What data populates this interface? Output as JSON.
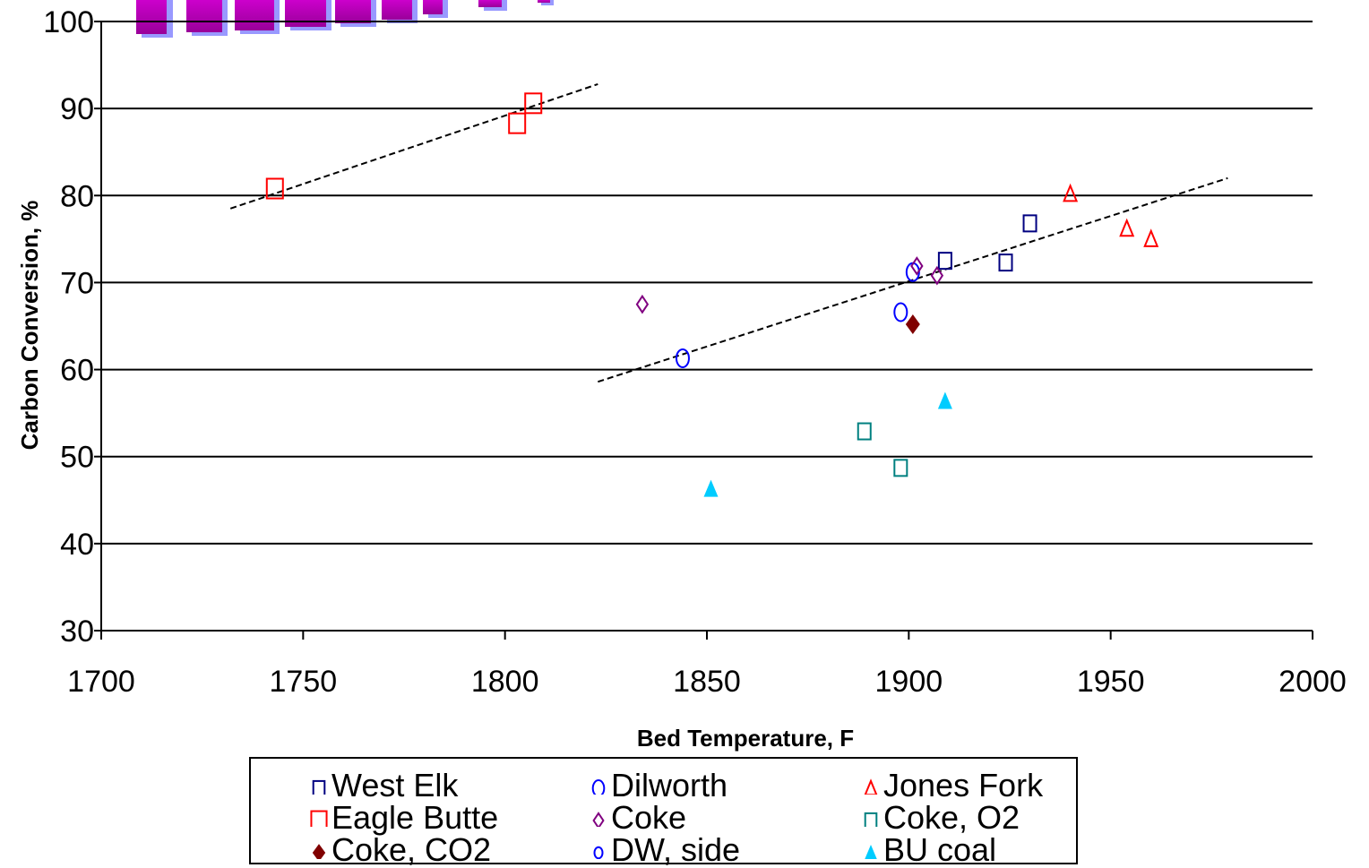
{
  "chart_data": {
    "type": "scatter",
    "title": "",
    "banner_text": "",
    "xlabel": "Bed Temperature, F",
    "ylabel": "Carbon Conversion, %",
    "xlim": [
      1700,
      2000
    ],
    "ylim": [
      30,
      100
    ],
    "xticks": [
      1700,
      1750,
      1800,
      1850,
      1900,
      1950,
      2000
    ],
    "yticks": [
      30,
      40,
      50,
      60,
      70,
      80,
      90,
      100
    ],
    "grid": "horizontal",
    "legend_position": "bottom",
    "series": [
      {
        "name": "West Elk",
        "marker": "square-open",
        "color": "#000080",
        "points": [
          [
            1909,
            72.5
          ],
          [
            1924,
            72.3
          ],
          [
            1930,
            76.8
          ]
        ]
      },
      {
        "name": "Dilworth",
        "marker": "ellipse-open",
        "color": "#0000FF",
        "points": [
          [
            1844,
            61.3
          ],
          [
            1898,
            66.6
          ],
          [
            1901,
            71.2
          ]
        ]
      },
      {
        "name": "Jones Fork",
        "marker": "triangle-open",
        "color": "#FF0000",
        "points": [
          [
            1940,
            80.2
          ],
          [
            1954,
            76.2
          ],
          [
            1960,
            75.0
          ]
        ]
      },
      {
        "name": "Eagle Butte",
        "marker": "square-open-large",
        "color": "#FF0000",
        "points": [
          [
            1743,
            80.8
          ],
          [
            1803,
            88.3
          ],
          [
            1807,
            90.6
          ]
        ]
      },
      {
        "name": "Coke",
        "marker": "diamond-open",
        "color": "#800080",
        "points": [
          [
            1834,
            67.5
          ],
          [
            1902,
            71.9
          ],
          [
            1907,
            70.8
          ]
        ]
      },
      {
        "name": "Coke, O2",
        "marker": "square-open-tall",
        "color": "#008080",
        "points": [
          [
            1889,
            52.9
          ],
          [
            1898,
            48.7
          ]
        ]
      },
      {
        "name": "Coke, CO2",
        "marker": "diamond-filled",
        "color": "#800000",
        "points": [
          [
            1901,
            65.2
          ]
        ]
      },
      {
        "name": "DW, side",
        "marker": "circle-open",
        "color": "#0000FF",
        "points": []
      },
      {
        "name": "BU coal",
        "marker": "triangle-filled",
        "color": "#00CCFF",
        "points": [
          [
            1851,
            46.3
          ],
          [
            1909,
            56.4
          ]
        ]
      }
    ],
    "trendlines": [
      {
        "style": "dashed",
        "color": "#000000",
        "from": [
          1732,
          78.5
        ],
        "to": [
          1823,
          92.8
        ]
      },
      {
        "style": "dashed",
        "color": "#000000",
        "from": [
          1823,
          58.6
        ],
        "to": [
          1979,
          82.0
        ]
      }
    ]
  },
  "legend": {
    "items": [
      {
        "label": "West Elk",
        "marker": "square-open",
        "color": "#000080"
      },
      {
        "label": "Dilworth",
        "marker": "ellipse-open",
        "color": "#0000FF"
      },
      {
        "label": "Jones Fork",
        "marker": "triangle-open",
        "color": "#FF0000"
      },
      {
        "label": "Eagle Butte",
        "marker": "square-open-large",
        "color": "#FF0000"
      },
      {
        "label": "Coke",
        "marker": "diamond-open",
        "color": "#800080"
      },
      {
        "label": "Coke, O2",
        "marker": "square-open-tall",
        "color": "#008080"
      },
      {
        "label": "Coke, CO2",
        "marker": "diamond-filled",
        "color": "#800000"
      },
      {
        "label": "DW, side",
        "marker": "circle-open",
        "color": "#0000FF"
      },
      {
        "label": "BU coal",
        "marker": "triangle-filled",
        "color": "#00CCFF"
      }
    ]
  },
  "banner": {
    "colors": {
      "face": "#CC00CC",
      "shadow": "#9999FF"
    }
  }
}
